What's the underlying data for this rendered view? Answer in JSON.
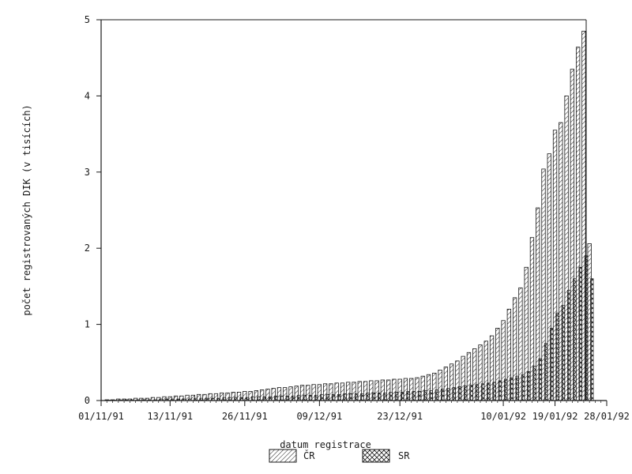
{
  "chart_data": {
    "type": "bar",
    "xlabel": "datum registrace",
    "ylabel": "počet registrovaných DIK (v tisících)",
    "ylim": [
      0,
      5
    ],
    "yticks": [
      0,
      1,
      2,
      3,
      4,
      5
    ],
    "xlim": [
      "1991-11-01",
      "1992-01-28"
    ],
    "xtick_labels": [
      "01/11/91",
      "13/11/91",
      "26/11/91",
      "09/12/91",
      "23/12/91",
      "10/01/92",
      "19/01/92",
      "28/01/92"
    ],
    "x_dates": [
      "1991-11-01",
      "1991-11-13",
      "1991-11-26",
      "1991-12-09",
      "1991-12-23",
      "1992-01-10",
      "1992-01-19",
      "1992-01-28"
    ],
    "grid": false,
    "legend_position": "bottom",
    "legend": [
      "ČR",
      "SR"
    ],
    "x": [
      "1991-11-02",
      "1991-11-03",
      "1991-11-04",
      "1991-11-05",
      "1991-11-06",
      "1991-11-07",
      "1991-11-08",
      "1991-11-09",
      "1991-11-10",
      "1991-11-11",
      "1991-11-12",
      "1991-11-13",
      "1991-11-14",
      "1991-11-15",
      "1991-11-16",
      "1991-11-17",
      "1991-11-18",
      "1991-11-19",
      "1991-11-20",
      "1991-11-21",
      "1991-11-22",
      "1991-11-23",
      "1991-11-24",
      "1991-11-25",
      "1991-11-26",
      "1991-11-27",
      "1991-11-28",
      "1991-11-29",
      "1991-11-30",
      "1991-12-01",
      "1991-12-02",
      "1991-12-03",
      "1991-12-04",
      "1991-12-05",
      "1991-12-06",
      "1991-12-07",
      "1991-12-08",
      "1991-12-09",
      "1991-12-10",
      "1991-12-11",
      "1991-12-12",
      "1991-12-13",
      "1991-12-14",
      "1991-12-15",
      "1991-12-16",
      "1991-12-17",
      "1991-12-18",
      "1991-12-19",
      "1991-12-20",
      "1991-12-21",
      "1991-12-22",
      "1991-12-23",
      "1991-12-24",
      "1991-12-25",
      "1991-12-26",
      "1991-12-27",
      "1991-12-28",
      "1991-12-29",
      "1991-12-30",
      "1991-12-31",
      "1992-01-01",
      "1992-01-02",
      "1992-01-03",
      "1992-01-04",
      "1992-01-05",
      "1992-01-06",
      "1992-01-07",
      "1992-01-08",
      "1992-01-09",
      "1992-01-10",
      "1992-01-11",
      "1992-01-12",
      "1992-01-13",
      "1992-01-14",
      "1992-01-15",
      "1992-01-16",
      "1992-01-17",
      "1992-01-18",
      "1992-01-19",
      "1992-01-20",
      "1992-01-21",
      "1992-01-22",
      "1992-01-23",
      "1992-01-24",
      "1992-01-25"
    ],
    "series": [
      {
        "name": "ČR",
        "values": [
          0.01,
          0.01,
          0.02,
          0.02,
          0.02,
          0.03,
          0.03,
          0.03,
          0.04,
          0.04,
          0.05,
          0.05,
          0.06,
          0.06,
          0.07,
          0.07,
          0.08,
          0.08,
          0.09,
          0.09,
          0.1,
          0.1,
          0.11,
          0.11,
          0.12,
          0.12,
          0.13,
          0.14,
          0.15,
          0.16,
          0.17,
          0.17,
          0.18,
          0.19,
          0.2,
          0.2,
          0.21,
          0.21,
          0.22,
          0.22,
          0.23,
          0.23,
          0.24,
          0.24,
          0.25,
          0.25,
          0.26,
          0.26,
          0.27,
          0.27,
          0.28,
          0.28,
          0.29,
          0.29,
          0.3,
          0.32,
          0.34,
          0.36,
          0.4,
          0.44,
          0.48,
          0.52,
          0.58,
          0.63,
          0.68,
          0.73,
          0.78,
          0.85,
          0.95,
          1.05,
          1.2,
          1.35,
          1.48,
          1.75,
          2.14,
          2.53,
          3.04,
          3.24,
          3.55,
          3.65,
          4.0,
          4.35,
          4.64,
          4.85,
          2.06
        ]
      },
      {
        "name": "SR",
        "values": [
          0.005,
          0.005,
          0.005,
          0.01,
          0.01,
          0.01,
          0.01,
          0.01,
          0.01,
          0.02,
          0.02,
          0.02,
          0.02,
          0.02,
          0.02,
          0.03,
          0.03,
          0.03,
          0.03,
          0.03,
          0.04,
          0.04,
          0.04,
          0.04,
          0.04,
          0.05,
          0.05,
          0.05,
          0.05,
          0.06,
          0.06,
          0.06,
          0.06,
          0.07,
          0.07,
          0.07,
          0.07,
          0.08,
          0.08,
          0.08,
          0.08,
          0.09,
          0.09,
          0.09,
          0.09,
          0.1,
          0.1,
          0.1,
          0.1,
          0.11,
          0.11,
          0.11,
          0.12,
          0.12,
          0.12,
          0.13,
          0.13,
          0.14,
          0.15,
          0.16,
          0.17,
          0.18,
          0.19,
          0.2,
          0.21,
          0.22,
          0.23,
          0.24,
          0.26,
          0.28,
          0.3,
          0.32,
          0.34,
          0.38,
          0.45,
          0.55,
          0.75,
          0.95,
          1.15,
          1.25,
          1.45,
          1.6,
          1.75,
          1.9,
          1.6
        ]
      }
    ]
  }
}
